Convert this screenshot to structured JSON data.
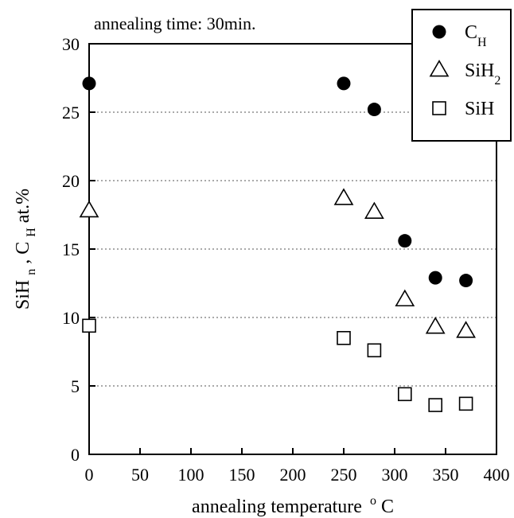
{
  "chart_data": {
    "type": "scatter",
    "annotation": "annealing time: 30min.",
    "xlabel": "annealing temperature",
    "xlabel_unit": {
      "sup": "o",
      "base": "C"
    },
    "ylabel": {
      "p1": "SiH",
      "p1_sub": "n",
      "p2": ", C",
      "p2_sub": "H",
      "p3": " at.%"
    },
    "xlim": [
      0,
      400
    ],
    "ylim": [
      0,
      30
    ],
    "xticks": [
      0,
      50,
      100,
      150,
      200,
      250,
      300,
      350,
      400
    ],
    "yticks": [
      0,
      5,
      10,
      15,
      20,
      25,
      30
    ],
    "grid": "horizontal dotted",
    "legend_position": "top-right",
    "series": [
      {
        "name": "C_H",
        "label": {
          "base": "C",
          "sub": "H"
        },
        "marker": "filled-circle",
        "x": [
          0,
          250,
          280,
          310,
          340,
          370
        ],
        "y": [
          27.1,
          27.1,
          25.2,
          15.6,
          12.9,
          12.7
        ]
      },
      {
        "name": "SiH_2",
        "label": {
          "base": "SiH",
          "sub": "2"
        },
        "marker": "open-triangle",
        "x": [
          0,
          250,
          280,
          310,
          340,
          370
        ],
        "y": [
          17.8,
          18.7,
          17.7,
          11.3,
          9.3,
          9.0
        ]
      },
      {
        "name": "SiH",
        "label": {
          "base": "SiH",
          "sub": ""
        },
        "marker": "open-square",
        "x": [
          0,
          250,
          280,
          310,
          340,
          370
        ],
        "y": [
          9.4,
          8.5,
          7.6,
          4.4,
          3.6,
          3.7
        ]
      }
    ]
  }
}
